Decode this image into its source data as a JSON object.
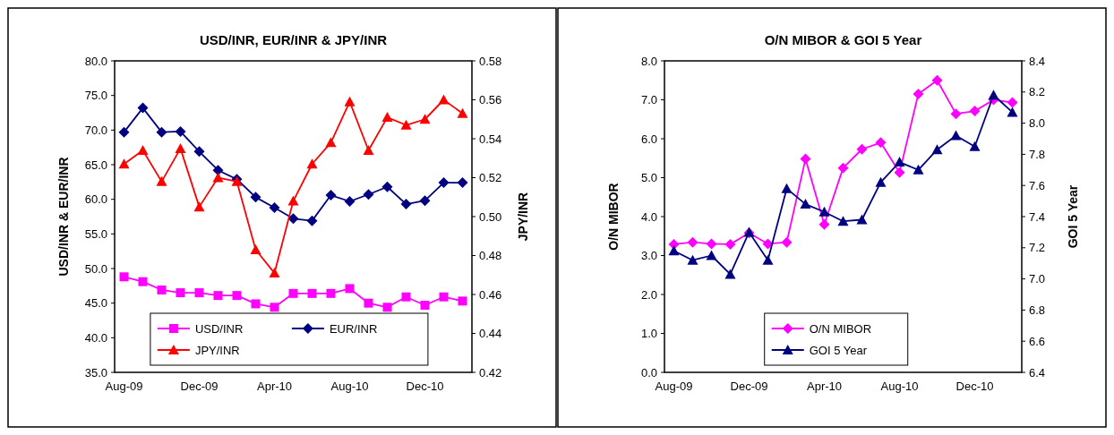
{
  "chart_data": [
    {
      "type": "line",
      "title": "USD/INR, EUR/INR & JPY/INR",
      "ylabel": "USD/INR & EUR/INR",
      "y2label": "JPY/INR",
      "categories": [
        "Aug-09",
        null,
        null,
        null,
        "Dec-09",
        null,
        null,
        null,
        "Apr-10",
        null,
        null,
        null,
        "Aug-10",
        null,
        null,
        null,
        "Dec-10",
        null,
        null
      ],
      "ylim": [
        35,
        80
      ],
      "yticks": [
        {
          "value": 35,
          "label": "35.0"
        },
        {
          "value": 40,
          "label": "40.0"
        },
        {
          "value": 45,
          "label": "45.0"
        },
        {
          "value": 50,
          "label": "50.0"
        },
        {
          "value": 55,
          "label": "55.0"
        },
        {
          "value": 60,
          "label": "60.0"
        },
        {
          "value": 65,
          "label": "65.0"
        },
        {
          "value": 70,
          "label": "70.0"
        },
        {
          "value": 75,
          "label": "75.0"
        },
        {
          "value": 80,
          "label": "80.0"
        }
      ],
      "y2lim": [
        0.42,
        0.58
      ],
      "y2ticks": [
        0.42,
        0.44,
        0.46,
        0.48,
        {
          "value": 0.5,
          "label": "0.50"
        },
        0.52,
        0.54,
        0.56,
        0.58
      ],
      "legend": "bottom",
      "grid": false,
      "series": [
        {
          "name": "USD/INR",
          "color": "#ff00ff",
          "marker": "square",
          "values": [
            48.8,
            48.1,
            46.9,
            46.5,
            46.5,
            46.1,
            46.1,
            44.9,
            44.4,
            46.4,
            46.4,
            46.4,
            47.1,
            45.0,
            44.4,
            45.9,
            44.7,
            45.9,
            45.3
          ]
        },
        {
          "name": "EUR/INR",
          "color": "#000080",
          "marker": "diamond",
          "values": [
            69.7,
            73.2,
            69.7,
            69.8,
            66.9,
            64.2,
            62.9,
            60.3,
            58.8,
            57.2,
            56.9,
            60.6,
            59.7,
            60.7,
            61.8,
            59.3,
            59.8,
            62.4,
            62.4
          ]
        },
        {
          "name": "JPY/INR",
          "color": "#ff0000",
          "marker": "triangle",
          "axis": "y2",
          "values": [
            0.527,
            0.534,
            0.518,
            0.535,
            0.505,
            0.52,
            0.518,
            0.483,
            0.471,
            0.508,
            0.527,
            0.538,
            0.559,
            0.534,
            0.551,
            0.547,
            0.55,
            0.56,
            0.553
          ]
        }
      ]
    },
    {
      "type": "line",
      "title": "O/N MIBOR & GOI 5 Year",
      "ylabel": "O/N MIBOR",
      "y2label": "GOI 5 Year",
      "categories": [
        "Aug-09",
        null,
        null,
        null,
        "Dec-09",
        null,
        null,
        null,
        "Apr-10",
        null,
        null,
        null,
        "Aug-10",
        null,
        null,
        null,
        "Dec-10",
        null,
        null
      ],
      "ylim": [
        0,
        8
      ],
      "yticks": [
        {
          "value": 0,
          "label": "0.0"
        },
        {
          "value": 1,
          "label": "1.0"
        },
        {
          "value": 2,
          "label": "2.0"
        },
        {
          "value": 3,
          "label": "3.0"
        },
        {
          "value": 4,
          "label": "4.0"
        },
        {
          "value": 5,
          "label": "5.0"
        },
        {
          "value": 6,
          "label": "6.0"
        },
        {
          "value": 7,
          "label": "7.0"
        },
        {
          "value": 8,
          "label": "8.0"
        }
      ],
      "y2lim": [
        6.4,
        8.4
      ],
      "y2ticks": [
        6.4,
        6.6,
        6.8,
        {
          "value": 7,
          "label": "7.0"
        },
        7.2,
        7.4,
        7.6,
        7.8,
        {
          "value": 8,
          "label": "8.0"
        },
        8.2,
        8.4
      ],
      "legend": "bottom",
      "grid": false,
      "series": [
        {
          "name": "O/N MIBOR",
          "color": "#ff00ff",
          "marker": "diamond",
          "values": [
            3.29,
            3.34,
            3.3,
            3.29,
            3.58,
            3.3,
            3.34,
            5.48,
            3.8,
            5.25,
            5.73,
            5.9,
            5.13,
            7.15,
            7.5,
            6.64,
            6.71,
            7.0,
            6.93
          ]
        },
        {
          "name": "GOI 5 Year",
          "color": "#000080",
          "marker": "triangle",
          "axis": "y2",
          "values": [
            7.18,
            7.12,
            7.15,
            7.03,
            7.3,
            7.12,
            7.58,
            7.48,
            7.43,
            7.37,
            7.38,
            7.62,
            7.75,
            7.7,
            7.83,
            7.92,
            7.85,
            8.18,
            8.07
          ]
        }
      ]
    }
  ]
}
